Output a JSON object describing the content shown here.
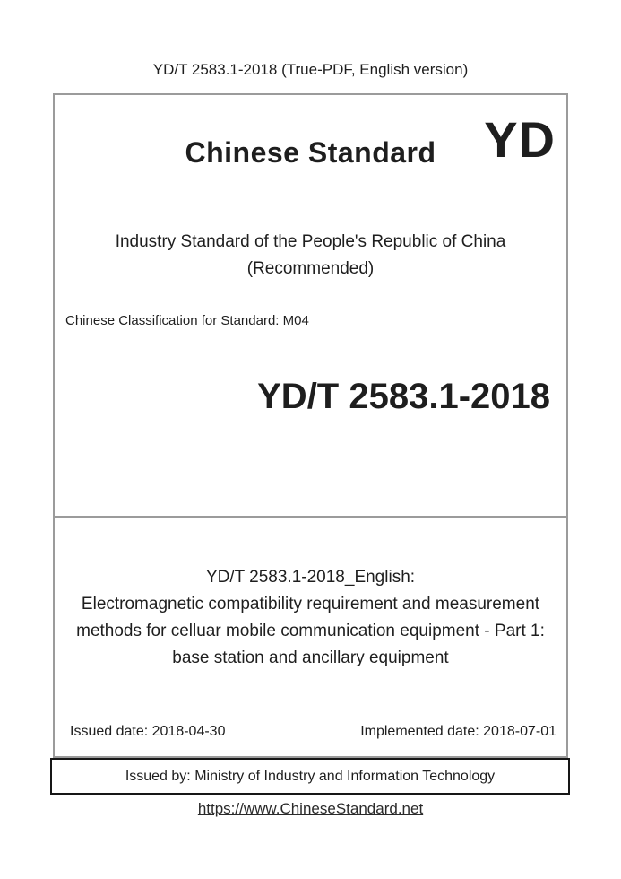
{
  "colors": {
    "main_box_border": "#9b9b9b",
    "issuer_box_border": "#161616",
    "text": "#1e1e1e",
    "link": "#2a2a2a"
  },
  "header": {
    "text": "YD/T 2583.1-2018 (True-PDF, English version)"
  },
  "cover": {
    "brand_title": "Chinese Standard",
    "logo_text": "YD",
    "type_line1": "Industry Standard of the People's Republic of China",
    "type_line2": "(Recommended)",
    "classification": "Chinese Classification for Standard: M04",
    "standard_number": "YD/T 2583.1-2018",
    "english_title_heading": "YD/T 2583.1-2018_English:",
    "english_title_body": "Electromagnetic compatibility requirement and measurement methods for celluar mobile communication equipment - Part 1: base station and ancillary equipment",
    "issued_date_label": "Issued date: 2018-04-30",
    "implemented_date_label": "Implemented date: 2018-07-01"
  },
  "issuer": {
    "text": "Issued by: Ministry of Industry and Information Technology"
  },
  "footer": {
    "link": "https://www.ChineseStandard.net"
  }
}
